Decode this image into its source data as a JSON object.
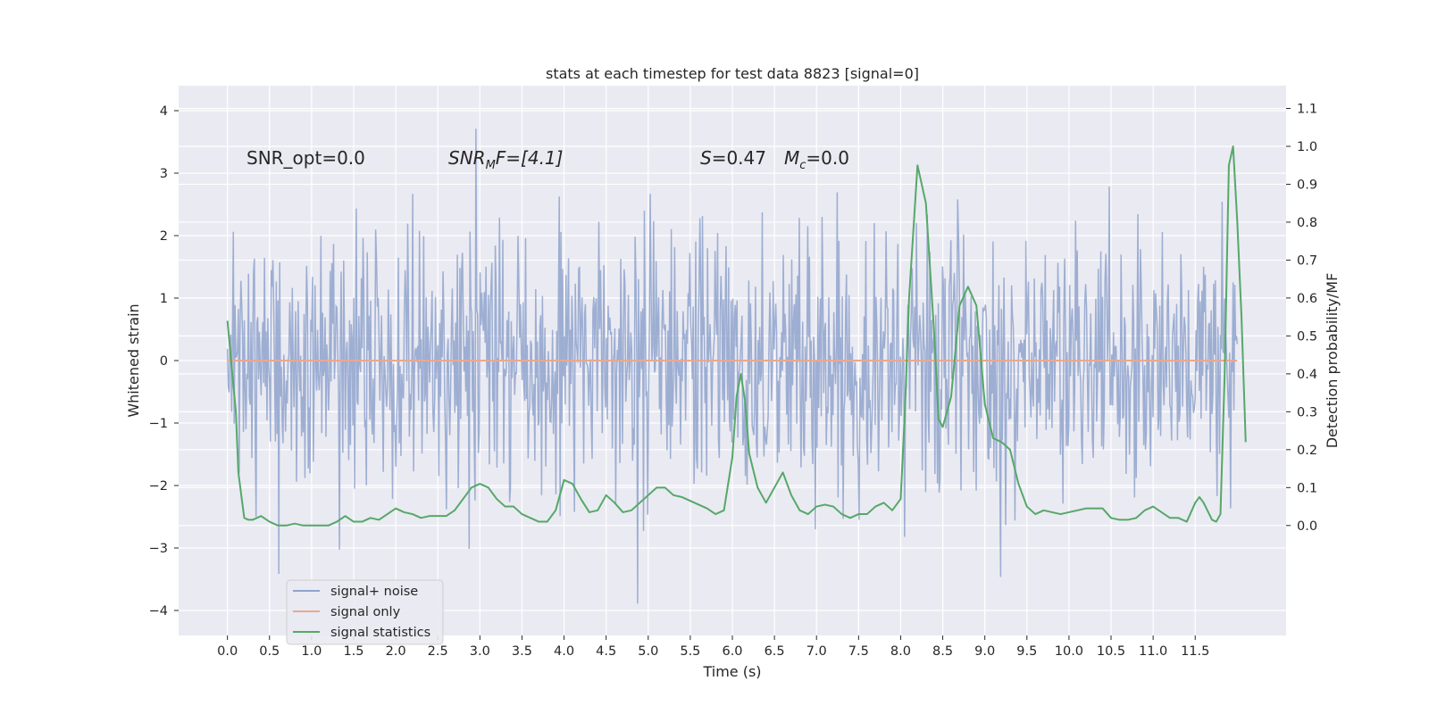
{
  "chart_data": {
    "type": "line",
    "title": "stats at each timestep for test data 8823 [signal=0]",
    "xlabel": "Time (s)",
    "ylabel": "Whitened strain",
    "ylabel_right": "Detection probability/MF",
    "xlim": [
      -0.58,
      12.58
    ],
    "ylim": [
      -4.4,
      4.4
    ],
    "ylim_right": [
      -0.29,
      1.16
    ],
    "xticks": [
      "0.0",
      "0.5",
      "1.0",
      "1.5",
      "2.0",
      "2.5",
      "3.0",
      "3.5",
      "4.0",
      "4.5",
      "5.0",
      "5.5",
      "6.0",
      "6.5",
      "7.0",
      "7.5",
      "8.0",
      "8.5",
      "9.0",
      "9.5",
      "10.0",
      "10.5",
      "11.0",
      "11.5"
    ],
    "yticks": [
      "4",
      "3",
      "2",
      "1",
      "0",
      "−1",
      "−2",
      "−3",
      "−4"
    ],
    "yticks_right": [
      "1.1",
      "1.0",
      "0.9",
      "0.8",
      "0.7",
      "0.6",
      "0.5",
      "0.4",
      "0.3",
      "0.2",
      "0.1",
      "0.0"
    ],
    "annotations": {
      "snr_opt": "SNR_opt=0.0",
      "snr_mf_base": "SNR",
      "snr_mf_sub": "M",
      "snr_mf_rest": "F=[4.1]",
      "s_var": "S",
      "s_val": "=0.47",
      "mc_base": "M",
      "mc_sub": "c",
      "mc_val": "=0.0"
    },
    "grid": true,
    "legend_placement": "lower-left",
    "series": [
      {
        "name": "signal+ noise",
        "color": "#8fa3cc",
        "description_range": [
          -4.0,
          4.0
        ],
        "x_range": [
          0.0,
          12.0
        ]
      },
      {
        "name": "signal only",
        "color": "#e8a990",
        "constant_value": 0.0,
        "x_range": [
          0.0,
          12.0
        ]
      },
      {
        "name": "signal statistics",
        "color": "#55a868",
        "axis": "right",
        "points": [
          [
            0.0,
            0.54
          ],
          [
            0.1,
            0.3
          ],
          [
            0.13,
            0.14
          ],
          [
            0.17,
            0.07
          ],
          [
            0.2,
            0.02
          ],
          [
            0.25,
            0.015
          ],
          [
            0.3,
            0.015
          ],
          [
            0.4,
            0.025
          ],
          [
            0.5,
            0.01
          ],
          [
            0.6,
            0.0
          ],
          [
            0.7,
            0.0
          ],
          [
            0.8,
            0.005
          ],
          [
            0.9,
            0.0
          ],
          [
            1.0,
            0.0
          ],
          [
            1.1,
            0.0
          ],
          [
            1.2,
            0.0
          ],
          [
            1.3,
            0.01
          ],
          [
            1.4,
            0.025
          ],
          [
            1.5,
            0.01
          ],
          [
            1.6,
            0.01
          ],
          [
            1.7,
            0.02
          ],
          [
            1.8,
            0.015
          ],
          [
            1.9,
            0.03
          ],
          [
            2.0,
            0.045
          ],
          [
            2.1,
            0.035
          ],
          [
            2.2,
            0.03
          ],
          [
            2.3,
            0.02
          ],
          [
            2.4,
            0.025
          ],
          [
            2.5,
            0.025
          ],
          [
            2.6,
            0.025
          ],
          [
            2.7,
            0.04
          ],
          [
            2.8,
            0.07
          ],
          [
            2.9,
            0.1
          ],
          [
            3.0,
            0.11
          ],
          [
            3.1,
            0.1
          ],
          [
            3.2,
            0.07
          ],
          [
            3.3,
            0.05
          ],
          [
            3.4,
            0.05
          ],
          [
            3.5,
            0.03
          ],
          [
            3.6,
            0.02
          ],
          [
            3.7,
            0.01
          ],
          [
            3.8,
            0.01
          ],
          [
            3.9,
            0.04
          ],
          [
            4.0,
            0.12
          ],
          [
            4.1,
            0.11
          ],
          [
            4.2,
            0.07
          ],
          [
            4.3,
            0.035
          ],
          [
            4.4,
            0.04
          ],
          [
            4.5,
            0.08
          ],
          [
            4.6,
            0.06
          ],
          [
            4.7,
            0.035
          ],
          [
            4.8,
            0.04
          ],
          [
            4.9,
            0.06
          ],
          [
            5.0,
            0.08
          ],
          [
            5.1,
            0.1
          ],
          [
            5.2,
            0.1
          ],
          [
            5.3,
            0.08
          ],
          [
            5.4,
            0.075
          ],
          [
            5.5,
            0.065
          ],
          [
            5.6,
            0.055
          ],
          [
            5.7,
            0.045
          ],
          [
            5.8,
            0.03
          ],
          [
            5.9,
            0.04
          ],
          [
            6.0,
            0.18
          ],
          [
            6.05,
            0.34
          ],
          [
            6.1,
            0.4
          ],
          [
            6.15,
            0.33
          ],
          [
            6.2,
            0.19
          ],
          [
            6.3,
            0.1
          ],
          [
            6.4,
            0.06
          ],
          [
            6.5,
            0.1
          ],
          [
            6.6,
            0.14
          ],
          [
            6.7,
            0.08
          ],
          [
            6.8,
            0.04
          ],
          [
            6.9,
            0.03
          ],
          [
            7.0,
            0.05
          ],
          [
            7.1,
            0.055
          ],
          [
            7.2,
            0.05
          ],
          [
            7.3,
            0.03
          ],
          [
            7.4,
            0.02
          ],
          [
            7.5,
            0.03
          ],
          [
            7.6,
            0.03
          ],
          [
            7.7,
            0.05
          ],
          [
            7.8,
            0.06
          ],
          [
            7.9,
            0.04
          ],
          [
            8.0,
            0.07
          ],
          [
            8.05,
            0.3
          ],
          [
            8.1,
            0.6
          ],
          [
            8.2,
            0.95
          ],
          [
            8.3,
            0.85
          ],
          [
            8.4,
            0.5
          ],
          [
            8.45,
            0.28
          ],
          [
            8.5,
            0.26
          ],
          [
            8.6,
            0.34
          ],
          [
            8.7,
            0.58
          ],
          [
            8.8,
            0.63
          ],
          [
            8.9,
            0.58
          ],
          [
            9.0,
            0.32
          ],
          [
            9.1,
            0.23
          ],
          [
            9.2,
            0.22
          ],
          [
            9.3,
            0.2
          ],
          [
            9.4,
            0.11
          ],
          [
            9.5,
            0.05
          ],
          [
            9.6,
            0.03
          ],
          [
            9.7,
            0.04
          ],
          [
            9.8,
            0.035
          ],
          [
            9.9,
            0.03
          ],
          [
            10.0,
            0.035
          ],
          [
            10.1,
            0.04
          ],
          [
            10.2,
            0.045
          ],
          [
            10.3,
            0.045
          ],
          [
            10.4,
            0.045
          ],
          [
            10.5,
            0.02
          ],
          [
            10.6,
            0.015
          ],
          [
            10.7,
            0.015
          ],
          [
            10.8,
            0.02
          ],
          [
            10.9,
            0.04
          ],
          [
            11.0,
            0.05
          ],
          [
            11.1,
            0.035
          ],
          [
            11.2,
            0.02
          ],
          [
            11.3,
            0.02
          ],
          [
            11.4,
            0.01
          ],
          [
            11.5,
            0.06
          ],
          [
            11.55,
            0.075
          ],
          [
            11.6,
            0.06
          ],
          [
            11.7,
            0.015
          ],
          [
            11.75,
            0.01
          ],
          [
            11.8,
            0.03
          ],
          [
            11.85,
            0.4
          ],
          [
            11.9,
            0.95
          ],
          [
            11.95,
            1.0
          ],
          [
            12.0,
            0.8
          ],
          [
            12.05,
            0.55
          ],
          [
            12.1,
            0.22
          ]
        ]
      }
    ]
  }
}
